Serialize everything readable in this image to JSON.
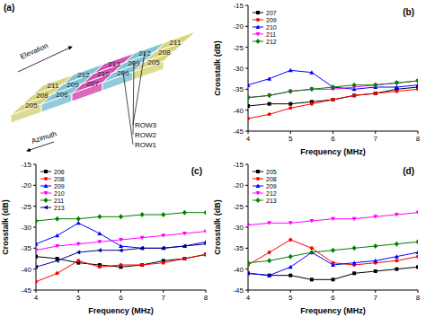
{
  "diagram": {
    "label": "(a)",
    "axes": [
      "Elevation",
      "Azimuth"
    ],
    "rows": [
      {
        "name": "ROW3",
        "elements": [
          "211",
          "212",
          "213",
          "212",
          "211"
        ]
      },
      {
        "name": "ROW2",
        "elements": [
          "208",
          "209",
          "210",
          "209",
          "208"
        ]
      },
      {
        "name": "ROW1",
        "elements": [
          "205",
          "206",
          "207",
          "206",
          "205"
        ]
      }
    ]
  },
  "chart_data": [
    {
      "type": "line",
      "title": "(b)",
      "x_label": "Frequency (MHz)",
      "y_label": "Crosstalk (dB)",
      "x": [
        4,
        4.5,
        5,
        5.5,
        6,
        6.5,
        7,
        7.5,
        8
      ],
      "xlim": [
        4,
        8
      ],
      "xticks": [
        4,
        5,
        6,
        7,
        8
      ],
      "ylim": [
        -45,
        -15
      ],
      "yticks": [
        -45,
        -40,
        -35,
        -30,
        -25,
        -20,
        -15
      ],
      "grid": false,
      "series": [
        {
          "name": "207",
          "color": "#000000",
          "marker": "square",
          "values": [
            -39,
            -38.5,
            -38.5,
            -38,
            -37.5,
            -36.5,
            -36,
            -35,
            -34.5
          ]
        },
        {
          "name": "209",
          "color": "#ff0000",
          "marker": "circle",
          "values": [
            -42,
            -41,
            -39.5,
            -38.5,
            -37.5,
            -36.5,
            -36,
            -35.5,
            -35
          ]
        },
        {
          "name": "210",
          "color": "#0000ff",
          "marker": "triangle-up",
          "values": [
            -34,
            -32.5,
            -30.5,
            -31,
            -34.5,
            -35,
            -34.5,
            -34.5,
            -34
          ]
        },
        {
          "name": "211",
          "color": "#ff00ff",
          "marker": "triangle-down",
          "values": [
            -37,
            -36.5,
            -35.5,
            -35,
            -35,
            -34.5,
            -34,
            -33.5,
            -33
          ]
        },
        {
          "name": "212",
          "color": "#008000",
          "marker": "diamond",
          "values": [
            -37,
            -36.5,
            -35.5,
            -35,
            -34.5,
            -34,
            -34,
            -33.5,
            -33
          ]
        }
      ]
    },
    {
      "type": "line",
      "title": "(c)",
      "x_label": "Frequency (MHz)",
      "y_label": "Crosstalk (dB)",
      "x": [
        4,
        4.5,
        5,
        5.5,
        6,
        6.5,
        7,
        7.5,
        8
      ],
      "xlim": [
        4,
        8
      ],
      "xticks": [
        4,
        5,
        6,
        7,
        8
      ],
      "ylim": [
        -45,
        -15
      ],
      "yticks": [
        -45,
        -40,
        -35,
        -30,
        -25,
        -20,
        -15
      ],
      "grid": false,
      "series": [
        {
          "name": "206",
          "color": "#000000",
          "marker": "square",
          "values": [
            -37,
            -37.5,
            -38.5,
            -39,
            -39.5,
            -39,
            -38,
            -37.5,
            -36.5
          ]
        },
        {
          "name": "208",
          "color": "#ff0000",
          "marker": "circle",
          "values": [
            -43,
            -41,
            -38,
            -39.5,
            -39,
            -39,
            -38.5,
            -37.5,
            -36.5
          ]
        },
        {
          "name": "209",
          "color": "#0000ff",
          "marker": "triangle-up",
          "values": [
            -34,
            -32,
            -29,
            -31.5,
            -34.5,
            -35,
            -35,
            -34.5,
            -33.5
          ]
        },
        {
          "name": "210",
          "color": "#ff00ff",
          "marker": "triangle-down",
          "values": [
            -35.5,
            -34.5,
            -34,
            -33.5,
            -33,
            -32.5,
            -32,
            -31.5,
            -31
          ]
        },
        {
          "name": "211",
          "color": "#008000",
          "marker": "diamond",
          "values": [
            -28.5,
            -28,
            -28,
            -27.5,
            -27.5,
            -27,
            -27,
            -26.5,
            -26.5
          ]
        },
        {
          "name": "213",
          "color": "#000080",
          "marker": "triangle-left",
          "values": [
            -39.5,
            -38,
            -36,
            -35.5,
            -35.5,
            -35,
            -35,
            -34.5,
            -34
          ]
        }
      ]
    },
    {
      "type": "line",
      "title": "(d)",
      "x_label": "Frequency (MHz)",
      "y_label": "Crosstalk (dB)",
      "x": [
        4,
        4.5,
        5,
        5.5,
        6,
        6.5,
        7,
        7.5,
        8
      ],
      "xlim": [
        4,
        8
      ],
      "xticks": [
        4,
        5,
        6,
        7,
        8
      ],
      "ylim": [
        -45,
        -15
      ],
      "yticks": [
        -45,
        -40,
        -35,
        -30,
        -25,
        -20,
        -15
      ],
      "grid": false,
      "series": [
        {
          "name": "205",
          "color": "#000000",
          "marker": "square",
          "values": [
            -41,
            -41.5,
            -41.5,
            -42.5,
            -42.5,
            -41,
            -40.5,
            -40,
            -39.5
          ]
        },
        {
          "name": "208",
          "color": "#ff0000",
          "marker": "circle",
          "values": [
            -39,
            -36,
            -33,
            -35,
            -38.5,
            -39,
            -38.5,
            -38,
            -37
          ]
        },
        {
          "name": "209",
          "color": "#0000ff",
          "marker": "triangle-up",
          "values": [
            -41,
            -41.5,
            -39.5,
            -36,
            -39,
            -38.5,
            -38,
            -37,
            -36
          ]
        },
        {
          "name": "212",
          "color": "#ff00ff",
          "marker": "triangle-down",
          "values": [
            -29.5,
            -29,
            -29,
            -28.5,
            -28,
            -28,
            -27.5,
            -27,
            -26.5
          ]
        },
        {
          "name": "213",
          "color": "#008000",
          "marker": "diamond",
          "values": [
            -38.5,
            -38,
            -37,
            -36,
            -35.5,
            -35,
            -34.5,
            -34,
            -33.5
          ]
        }
      ]
    }
  ]
}
